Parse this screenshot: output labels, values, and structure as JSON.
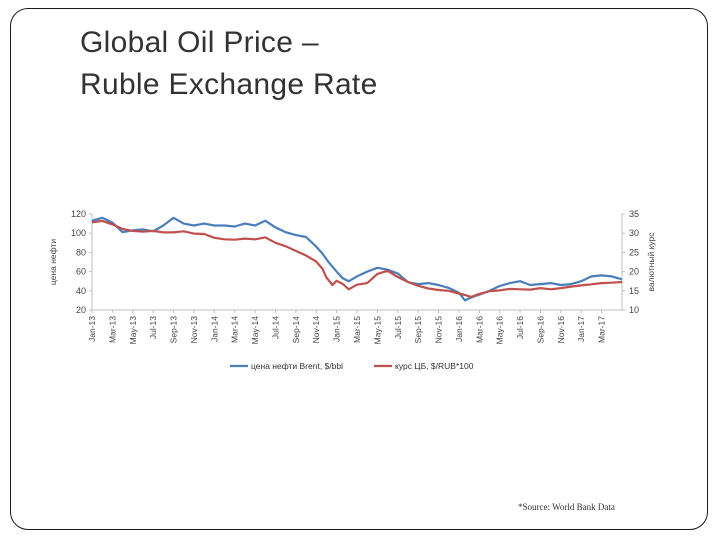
{
  "slide": {
    "title_line1": "Global Oil Price –",
    "title_line2": "Ruble Exchange Rate",
    "source": "*Source: World Bank Data"
  },
  "chart_data": {
    "type": "line",
    "title": "",
    "x_tick_labels": [
      "Jan-13",
      "Mar-13",
      "May-13",
      "Jul-13",
      "Sep-13",
      "Nov-13",
      "Jan-14",
      "Mar-14",
      "May-14",
      "Jul-14",
      "Sep-14",
      "Nov-14",
      "Jan-15",
      "Mar-15",
      "May-15",
      "Jul-15",
      "Sep-15",
      "Nov-15",
      "Jan-16",
      "Mar-16",
      "May-16",
      "Jul-16",
      "Sep-16",
      "Nov-16",
      "Jan-17",
      "Mar-17"
    ],
    "x_range": [
      0,
      26
    ],
    "y_left": {
      "label": "цена нефти",
      "range": [
        20,
        120
      ],
      "ticks": [
        20,
        40,
        60,
        80,
        100,
        120
      ]
    },
    "y_right": {
      "label": "валютный курс",
      "range": [
        10,
        35
      ],
      "ticks": [
        10,
        15,
        20,
        25,
        30,
        35
      ]
    },
    "grid": false,
    "legend_position": "bottom",
    "series": [
      {
        "name": "цена нефти Brent, $/bbl",
        "axis": "left",
        "color": "#4a7ebb",
        "x": [
          0,
          0.5,
          1,
          1.5,
          2,
          2.5,
          3,
          3.5,
          4,
          4.5,
          5,
          5.5,
          6,
          6.5,
          7,
          7.5,
          8,
          8.5,
          9,
          9.5,
          10,
          10.5,
          11,
          11.3,
          11.6,
          12,
          12.3,
          12.6,
          13,
          13.5,
          14,
          14.5,
          15,
          15.5,
          16,
          16.5,
          17,
          17.5,
          18,
          18.3,
          18.6,
          19,
          19.5,
          20,
          20.5,
          21,
          21.5,
          22,
          22.5,
          23,
          23.5,
          24,
          24.5,
          25,
          25.5,
          26
        ],
        "values": [
          113,
          116,
          111,
          101,
          103,
          104,
          102,
          108,
          116,
          110,
          108,
          110,
          108,
          108,
          107,
          110,
          108,
          113,
          106,
          101,
          98,
          96,
          86,
          79,
          70,
          60,
          53,
          50,
          55,
          60,
          64,
          62,
          58,
          49,
          47,
          48,
          46,
          43,
          38,
          30,
          33,
          36,
          40,
          45,
          48,
          50,
          46,
          47,
          48,
          46,
          47,
          50,
          55,
          56,
          55,
          52
        ]
      },
      {
        "name": "курс ЦБ, $/RUB*100",
        "axis": "right",
        "color": "#c0504d",
        "x": [
          0,
          0.5,
          1,
          1.5,
          2,
          2.5,
          3,
          3.5,
          4,
          4.5,
          5,
          5.5,
          6,
          6.5,
          7,
          7.5,
          8,
          8.5,
          9,
          9.5,
          10,
          10.5,
          11,
          11.3,
          11.5,
          11.8,
          12,
          12.3,
          12.6,
          13,
          13.5,
          14,
          14.5,
          15,
          15.5,
          16,
          16.5,
          17,
          17.5,
          18,
          18.3,
          18.6,
          19,
          19.5,
          20,
          20.5,
          21,
          21.5,
          22,
          22.5,
          23,
          23.5,
          24,
          24.5,
          25,
          25.5,
          26
        ],
        "values": [
          32.8,
          33.2,
          32.3,
          31.1,
          30.6,
          30.4,
          30.6,
          30.2,
          30.2,
          30.5,
          29.9,
          29.8,
          28.8,
          28.4,
          28.3,
          28.6,
          28.4,
          28.9,
          27.5,
          26.6,
          25.4,
          24.2,
          22.6,
          20.8,
          18.5,
          16.5,
          17.6,
          16.8,
          15.4,
          16.6,
          17.0,
          19.4,
          20.2,
          18.6,
          17.3,
          16.3,
          15.6,
          15.2,
          15.0,
          14.3,
          13.9,
          13.4,
          14.2,
          14.9,
          15.1,
          15.5,
          15.4,
          15.3,
          15.7,
          15.4,
          15.7,
          16.1,
          16.4,
          16.7,
          17.0,
          17.1,
          17.3
        ]
      }
    ]
  }
}
